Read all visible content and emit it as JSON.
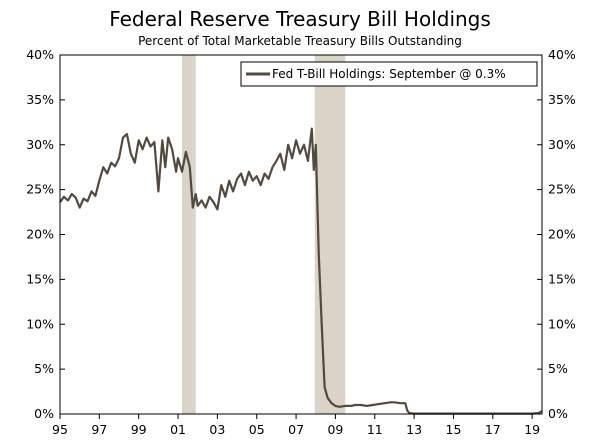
{
  "chart_data": {
    "type": "line",
    "title": "Federal Reserve Treasury Bill Holdings",
    "subtitle": "Percent of Total Marketable Treasury Bills Outstanding",
    "xlabel": "",
    "ylabel": "",
    "xlim": [
      1995,
      2019.5
    ],
    "ylim": [
      0,
      40
    ],
    "x_ticks": [
      1995,
      1997,
      1999,
      2001,
      2003,
      2005,
      2007,
      2009,
      2011,
      2013,
      2015,
      2017,
      2019
    ],
    "x_tick_labels": [
      "95",
      "97",
      "99",
      "01",
      "03",
      "05",
      "07",
      "09",
      "11",
      "13",
      "15",
      "17",
      "19"
    ],
    "y_ticks": [
      0,
      5,
      10,
      15,
      20,
      25,
      30,
      35,
      40
    ],
    "y_tick_labels": [
      "0%",
      "5%",
      "10%",
      "15%",
      "20%",
      "25%",
      "30%",
      "35%",
      "40%"
    ],
    "grid": false,
    "legend": {
      "label": "Fed T-Bill Holdings: September @ 0.3%",
      "placement": "top-right"
    },
    "recessions": [
      {
        "start": 2001.2,
        "end": 2001.9
      },
      {
        "start": 2007.95,
        "end": 2009.5
      }
    ],
    "colors": {
      "line": "#54493f",
      "recession": "#d9d4c7",
      "axis": "#000000"
    },
    "series": [
      {
        "name": "Fed T-Bill Holdings: September @ 0.3%",
        "x": [
          1995.0,
          1995.2,
          1995.4,
          1995.6,
          1995.8,
          1996.0,
          1996.2,
          1996.4,
          1996.6,
          1996.8,
          1997.0,
          1997.2,
          1997.4,
          1997.6,
          1997.8,
          1998.0,
          1998.2,
          1998.4,
          1998.6,
          1998.8,
          1999.0,
          1999.2,
          1999.4,
          1999.6,
          1999.8,
          2000.0,
          2000.2,
          2000.35,
          2000.5,
          2000.7,
          2000.9,
          2001.0,
          2001.2,
          2001.4,
          2001.6,
          2001.75,
          2001.9,
          2002.0,
          2002.2,
          2002.4,
          2002.6,
          2002.8,
          2003.0,
          2003.2,
          2003.4,
          2003.6,
          2003.8,
          2004.0,
          2004.2,
          2004.4,
          2004.6,
          2004.8,
          2005.0,
          2005.2,
          2005.4,
          2005.6,
          2005.8,
          2006.0,
          2006.2,
          2006.4,
          2006.6,
          2006.8,
          2007.0,
          2007.2,
          2007.4,
          2007.6,
          2007.8,
          2007.9,
          2008.0,
          2008.15,
          2008.3,
          2008.45,
          2008.6,
          2008.8,
          2009.0,
          2009.2,
          2009.5,
          2009.8,
          2010.0,
          2010.3,
          2010.6,
          2010.9,
          2011.2,
          2011.5,
          2011.8,
          2012.0,
          2012.3,
          2012.55,
          2012.65,
          2012.75,
          2013.0,
          2014.0,
          2015.0,
          2016.0,
          2017.0,
          2018.0,
          2019.0,
          2019.3,
          2019.5
        ],
        "values": [
          23.6,
          24.2,
          23.8,
          24.5,
          24.1,
          23.0,
          24.0,
          23.7,
          24.8,
          24.3,
          26.0,
          27.5,
          26.8,
          28.0,
          27.6,
          28.5,
          30.8,
          31.2,
          29.0,
          28.0,
          30.5,
          29.5,
          30.8,
          29.8,
          30.3,
          24.8,
          30.5,
          27.5,
          30.8,
          29.5,
          27.0,
          28.5,
          27.0,
          29.2,
          27.5,
          23.0,
          24.5,
          23.2,
          23.8,
          23.0,
          24.2,
          23.6,
          22.8,
          25.5,
          24.2,
          26.0,
          24.8,
          26.2,
          26.8,
          25.5,
          27.0,
          26.0,
          26.5,
          25.5,
          26.8,
          26.2,
          27.5,
          28.2,
          29.0,
          27.2,
          30.0,
          28.5,
          30.5,
          29.0,
          30.0,
          28.2,
          31.8,
          27.2,
          30.0,
          18.0,
          10.0,
          3.0,
          1.8,
          1.2,
          0.9,
          0.8,
          0.9,
          0.9,
          1.0,
          1.0,
          0.9,
          1.0,
          1.1,
          1.2,
          1.3,
          1.3,
          1.2,
          1.2,
          0.4,
          0.1,
          0.05,
          0.05,
          0.05,
          0.05,
          0.05,
          0.05,
          0.05,
          0.1,
          0.3
        ]
      }
    ]
  }
}
